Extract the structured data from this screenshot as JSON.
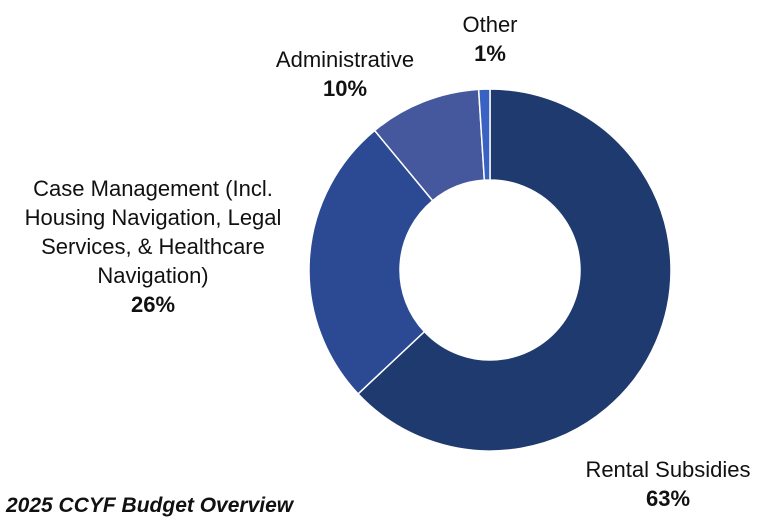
{
  "chart_data": {
    "type": "donut",
    "title": "2025 CCYF Budget Overview",
    "categories": [
      "Rental Subsidies",
      "Case Management (Incl. Housing Navigation, Legal Services, & Healthcare Navigation)",
      "Administrative",
      "Other"
    ],
    "values": [
      63,
      26,
      10,
      1
    ],
    "value_labels": [
      "63%",
      "26%",
      "10%",
      "1%"
    ],
    "colors": [
      "#1f3a6e",
      "#2b4a93",
      "#46589d",
      "#3a62c2"
    ]
  }
}
